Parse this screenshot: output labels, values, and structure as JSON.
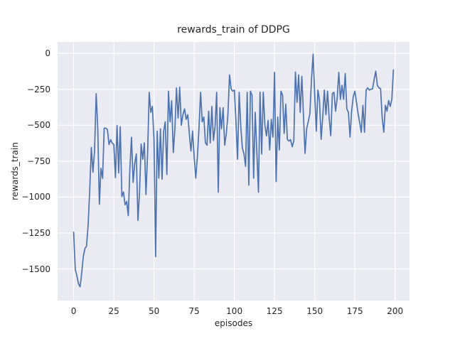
{
  "figure": {
    "background_color": "#ffffff",
    "plot_background_color": "#eaeaf2",
    "grid_color": "#ffffff",
    "text_color": "#262626",
    "line_color": "#4c72b0"
  },
  "chart_data": {
    "type": "line",
    "title": "rewards_train of DDPG",
    "xlabel": "episodes",
    "ylabel": "rewards_train",
    "legend": "none",
    "grid": true,
    "xlim": [
      -10,
      209
    ],
    "ylim": [
      -1720,
      80
    ],
    "xticks": [
      0,
      25,
      50,
      75,
      100,
      125,
      150,
      175,
      200
    ],
    "yticks": [
      0,
      -250,
      -500,
      -750,
      -1000,
      -1250,
      -1500
    ],
    "series": [
      {
        "name": "rewards_train",
        "x_start": 0,
        "x_step": 1,
        "values": [
          -1244,
          -1505,
          -1546,
          -1603,
          -1625,
          -1529,
          -1415,
          -1358,
          -1342,
          -1195,
          -950,
          -655,
          -827,
          -680,
          -280,
          -520,
          -1050,
          -800,
          -870,
          -520,
          -520,
          -530,
          -634,
          -601,
          -625,
          -634,
          -865,
          -502,
          -832,
          -510,
          -997,
          -964,
          -1054,
          -1030,
          -1129,
          -799,
          -584,
          -898,
          -766,
          -700,
          -1162,
          -964,
          -631,
          -737,
          -623,
          -982,
          -700,
          -271,
          -410,
          -369,
          -600,
          -1415,
          -541,
          -868,
          -525,
          -876,
          -545,
          -476,
          -843,
          -263,
          -476,
          -330,
          -690,
          -530,
          -240,
          -450,
          -235,
          -500,
          -427,
          -386,
          -459,
          -427,
          -560,
          -680,
          -540,
          -721,
          -868,
          -721,
          -520,
          -271,
          -476,
          -443,
          -623,
          -639,
          -402,
          -623,
          -369,
          -606,
          -508,
          -271,
          -966,
          -378,
          -525,
          -378,
          -639,
          -557,
          -427,
          -150,
          -247,
          -263,
          -255,
          -476,
          -737,
          -271,
          -508,
          -660,
          -700,
          -786,
          -271,
          -917,
          -263,
          -290,
          -868,
          -410,
          -688,
          -966,
          -270,
          -700,
          -270,
          -500,
          -574,
          -467,
          -672,
          -459,
          -582,
          -132,
          -892,
          -443,
          -672,
          -263,
          -290,
          -557,
          -353,
          -600,
          -610,
          -600,
          -650,
          -610,
          -130,
          -340,
          -150,
          -410,
          -160,
          -427,
          -696,
          -525,
          -475,
          -420,
          -181,
          -5,
          -285,
          -541,
          -255,
          -328,
          -598,
          -443,
          -255,
          -427,
          -263,
          -450,
          -573,
          -279,
          -271,
          -402,
          -312,
          -132,
          -320,
          -222,
          -320,
          -140,
          -386,
          -410,
          -582,
          -400,
          -300,
          -263,
          -340,
          -418,
          -480,
          -549,
          -361,
          -549,
          -255,
          -239,
          -255,
          -250,
          -247,
          -180,
          -124,
          -222,
          -240,
          -245,
          -450,
          -549,
          -361,
          -402,
          -328,
          -369,
          -320,
          -115
        ]
      }
    ]
  }
}
